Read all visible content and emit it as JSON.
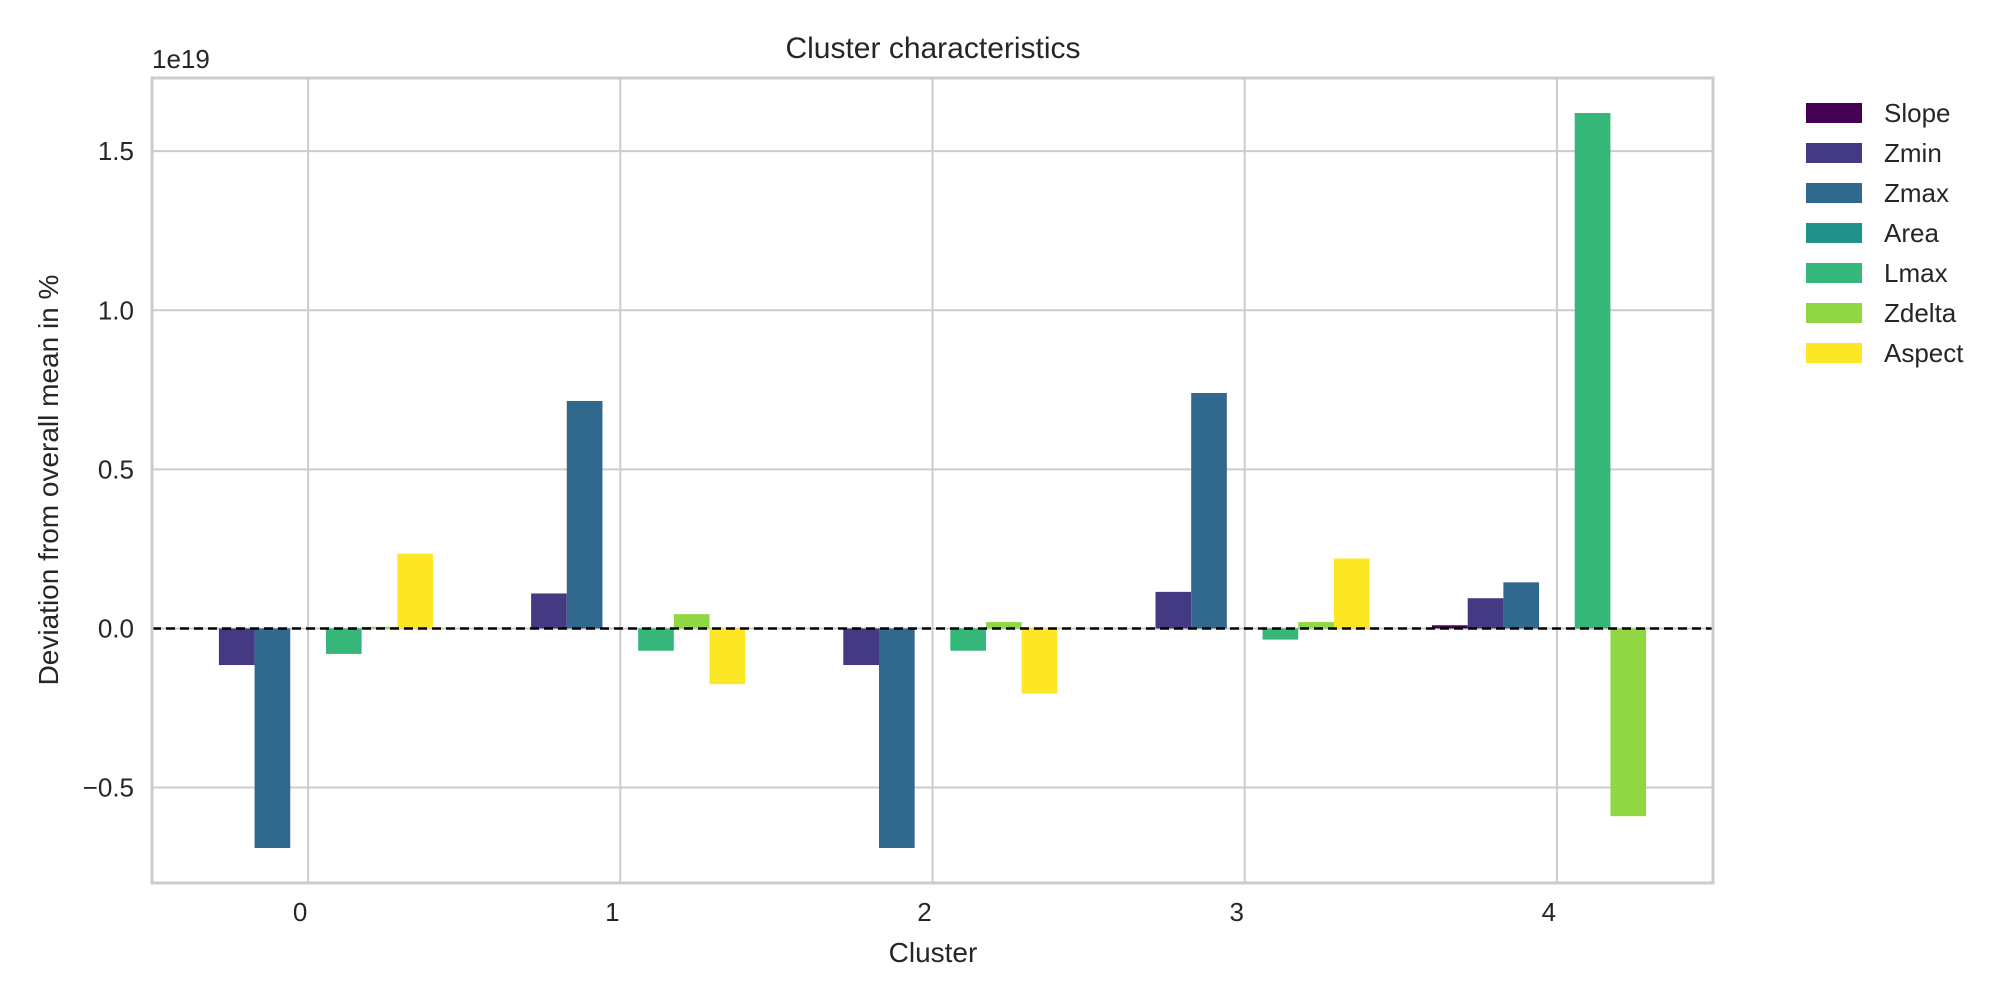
{
  "chart_data": {
    "type": "bar",
    "title": "Cluster characteristics",
    "xlabel": "Cluster",
    "ylabel": "Deviation from overall mean in %",
    "y_offset_text": "1e19",
    "y_scale": 1e+19,
    "categories": [
      "0",
      "1",
      "2",
      "3",
      "4"
    ],
    "ylim": [
      -0.8,
      1.73
    ],
    "yticks": [
      -0.5,
      0.0,
      0.5,
      1.0,
      1.5
    ],
    "ytick_labels": [
      "−0.5",
      "0.0",
      "0.5",
      "1.0",
      "1.5"
    ],
    "reference_line": 0.0,
    "grid": true,
    "legend_position": "outside-right",
    "series": [
      {
        "name": "Slope",
        "color": "#440154",
        "values": [
          0.0,
          0.0,
          0.0,
          0.0,
          0.01
        ]
      },
      {
        "name": "Zmin",
        "color": "#443983",
        "values": [
          -0.115,
          0.11,
          -0.115,
          0.115,
          0.095
        ]
      },
      {
        "name": "Zmax",
        "color": "#31688e",
        "values": [
          -0.69,
          0.715,
          -0.69,
          0.74,
          0.145
        ]
      },
      {
        "name": "Area",
        "color": "#21918c",
        "values": [
          0.0,
          0.0,
          0.0,
          0.0,
          0.0
        ]
      },
      {
        "name": "Lmax",
        "color": "#35b779",
        "values": [
          -0.08,
          -0.07,
          -0.07,
          -0.035,
          1.62
        ]
      },
      {
        "name": "Zdelta",
        "color": "#90d743",
        "values": [
          0.005,
          0.045,
          0.02,
          0.02,
          -0.59
        ]
      },
      {
        "name": "Aspect",
        "color": "#fde725",
        "values": [
          0.235,
          -0.175,
          -0.205,
          0.22,
          0.0
        ]
      }
    ]
  }
}
